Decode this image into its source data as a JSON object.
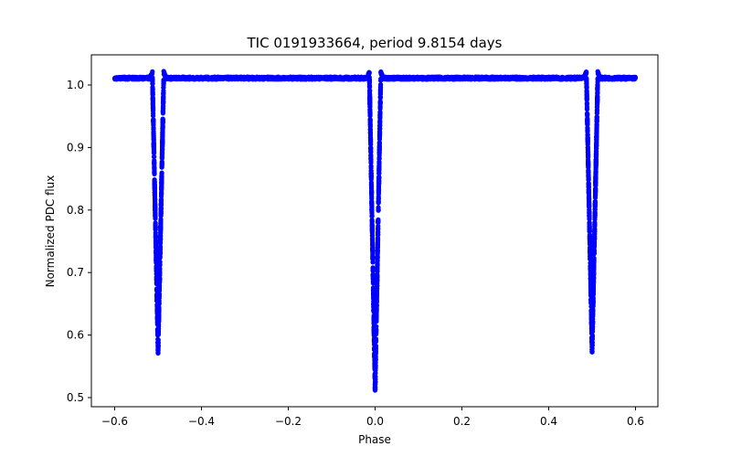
{
  "figure": {
    "title": "TIC 0191933664, period 9.8154 days",
    "xlabel": "Phase",
    "ylabel": "Normalized PDC flux",
    "marker_color": "#0000ff"
  },
  "chart_data": {
    "type": "scatter",
    "title": "TIC 0191933664, period 9.8154 days",
    "xlabel": "Phase",
    "ylabel": "Normalized PDC flux",
    "xlim": [
      -0.65,
      0.66
    ],
    "ylim": [
      0.49,
      1.045
    ],
    "xticks": [
      -0.6,
      -0.4,
      -0.2,
      0.0,
      0.2,
      0.4,
      0.6
    ],
    "xtick_labels": [
      "−0.6",
      "−0.4",
      "−0.2",
      "0.0",
      "0.2",
      "0.4",
      "0.6"
    ],
    "yticks": [
      0.5,
      0.6,
      0.7,
      0.8,
      0.9,
      1.0
    ],
    "ytick_labels": [
      "0.5",
      "0.6",
      "0.7",
      "0.8",
      "0.9",
      "1.0"
    ],
    "grid": false,
    "legend": null,
    "series": [
      {
        "name": "flux",
        "color": "#0000ff",
        "baseline_flux": 1.011,
        "phase_range": [
          -0.6,
          0.6
        ],
        "eclipses": [
          {
            "center_phase": -0.5,
            "min_flux": 0.572,
            "half_width_phase": 0.013
          },
          {
            "center_phase": 0.0,
            "min_flux": 0.512,
            "half_width_phase": 0.013
          },
          {
            "center_phase": 0.5,
            "min_flux": 0.572,
            "half_width_phase": 0.013
          }
        ],
        "edge_bump_flux": 1.02
      }
    ]
  }
}
